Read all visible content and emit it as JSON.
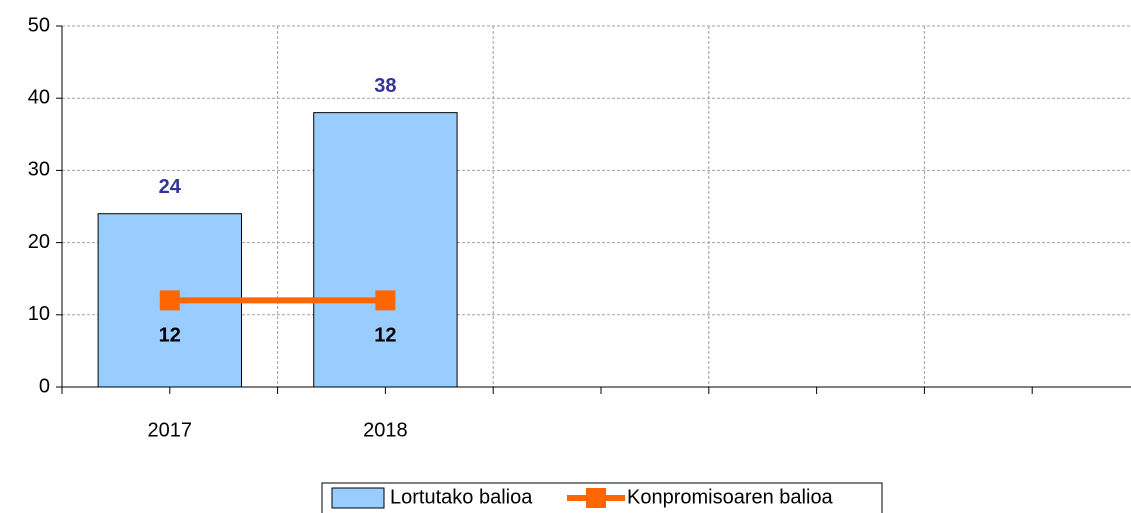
{
  "chart_data": {
    "type": "bar",
    "categories": [
      "2017",
      "2018",
      null,
      null,
      null
    ],
    "series": [
      {
        "name": "Lortutako balioa",
        "type": "bar",
        "color": "#99ccff",
        "values": [
          24,
          38,
          null,
          null,
          null
        ],
        "label_color": "#333399"
      },
      {
        "name": "Konpromisoaren balioa",
        "type": "line",
        "color": "#ff6600",
        "values": [
          12,
          12,
          null,
          null,
          null
        ],
        "label_color": "#000000"
      }
    ],
    "ylim": [
      0,
      50
    ],
    "yticks": [
      0,
      10,
      20,
      30,
      40,
      50
    ],
    "grid": true,
    "legend": "bottom"
  }
}
